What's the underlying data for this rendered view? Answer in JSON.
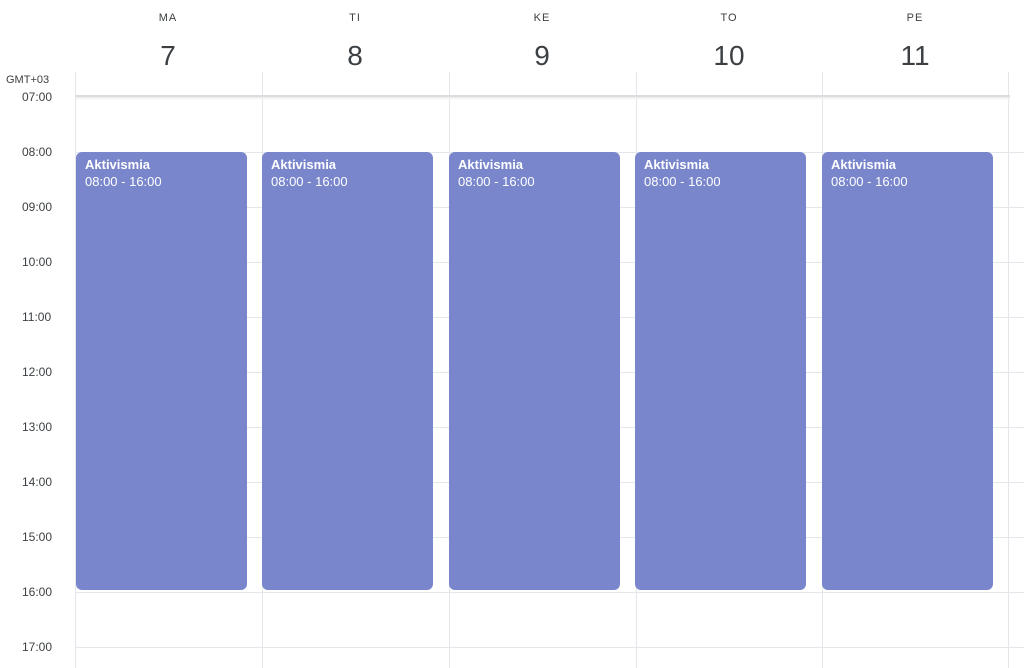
{
  "header": {
    "timezone": "GMT+03",
    "days": [
      {
        "name": "MA",
        "number": "7"
      },
      {
        "name": "TI",
        "number": "8"
      },
      {
        "name": "KE",
        "number": "9"
      },
      {
        "name": "TO",
        "number": "10"
      },
      {
        "name": "PE",
        "number": "11"
      }
    ]
  },
  "time_labels": [
    "07:00",
    "08:00",
    "09:00",
    "10:00",
    "11:00",
    "12:00",
    "13:00",
    "14:00",
    "15:00",
    "16:00",
    "17:00"
  ],
  "events": [
    {
      "title": "Aktivismia",
      "time": "08:00 - 16:00"
    },
    {
      "title": "Aktivismia",
      "time": "08:00 - 16:00"
    },
    {
      "title": "Aktivismia",
      "time": "08:00 - 16:00"
    },
    {
      "title": "Aktivismia",
      "time": "08:00 - 16:00"
    },
    {
      "title": "Aktivismia",
      "time": "08:00 - 16:00"
    }
  ],
  "colors": {
    "event": "#7986cb",
    "gridline": "#e3e6ea",
    "text": "#3c4043"
  }
}
